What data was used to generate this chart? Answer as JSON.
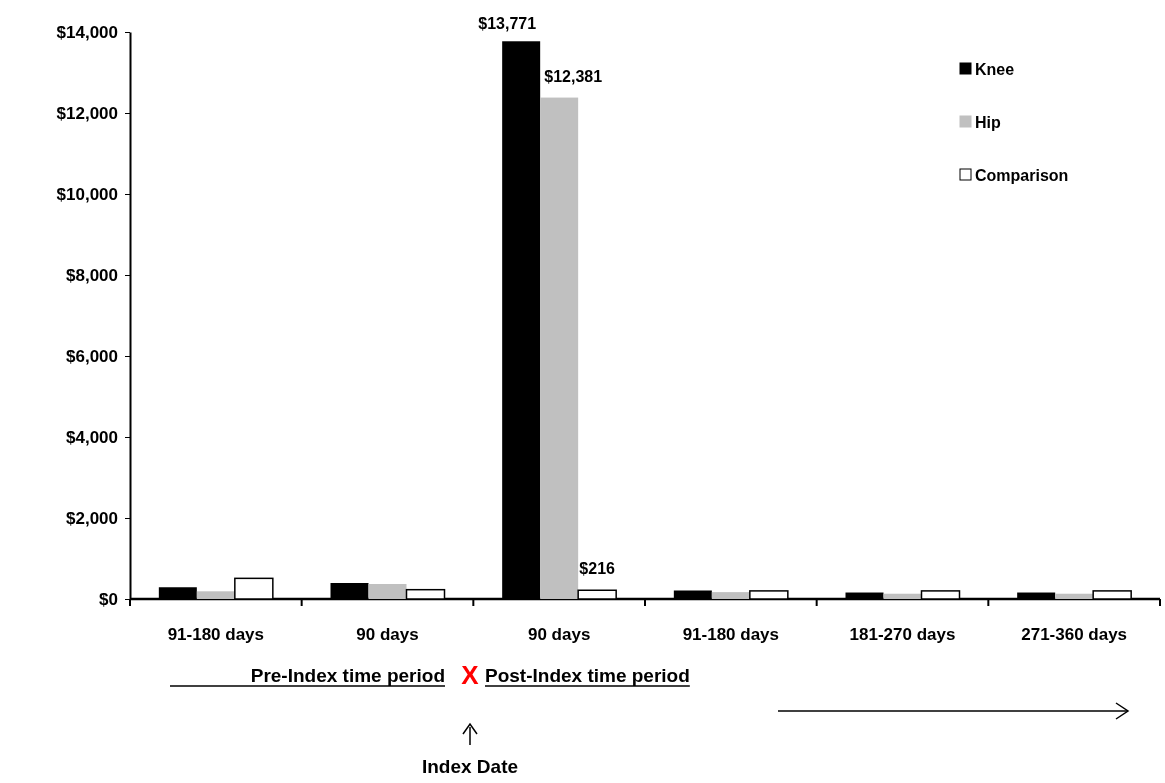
{
  "chart_data": {
    "type": "bar",
    "categories": [
      "91-180 days",
      "90 days",
      "90 days",
      "91-180 days",
      "181-270 days",
      "271-360 days"
    ],
    "series": [
      {
        "name": "Knee",
        "color": "#000000",
        "values": [
          290,
          395,
          13771,
          210,
          160,
          160
        ],
        "value_labels": [
          null,
          null,
          "$13,771",
          null,
          null,
          null
        ]
      },
      {
        "name": "Hip",
        "color": "#c0c0c0",
        "values": [
          190,
          370,
          12381,
          170,
          130,
          130
        ],
        "value_labels": [
          null,
          null,
          "$12,381",
          null,
          null,
          null
        ]
      },
      {
        "name": "Comparison",
        "color": "#ffffff",
        "values": [
          510,
          230,
          216,
          200,
          200,
          200
        ],
        "value_labels": [
          null,
          null,
          "$216",
          null,
          null,
          null
        ]
      }
    ],
    "ylim": [
      0,
      14000
    ],
    "yticks": [
      {
        "value": 0,
        "label": "$0"
      },
      {
        "value": 2000,
        "label": "$2,000"
      },
      {
        "value": 4000,
        "label": "$4,000"
      },
      {
        "value": 6000,
        "label": "$6,000"
      },
      {
        "value": 8000,
        "label": "$8,000"
      },
      {
        "value": 10000,
        "label": "$10,000"
      },
      {
        "value": 12000,
        "label": "$12,000"
      },
      {
        "value": 14000,
        "label": "$14,000"
      }
    ],
    "grid": false,
    "legend": "top right",
    "annotations": [
      "Pre-Index time period",
      "X",
      "Post-Index time period",
      "Index Date"
    ]
  }
}
